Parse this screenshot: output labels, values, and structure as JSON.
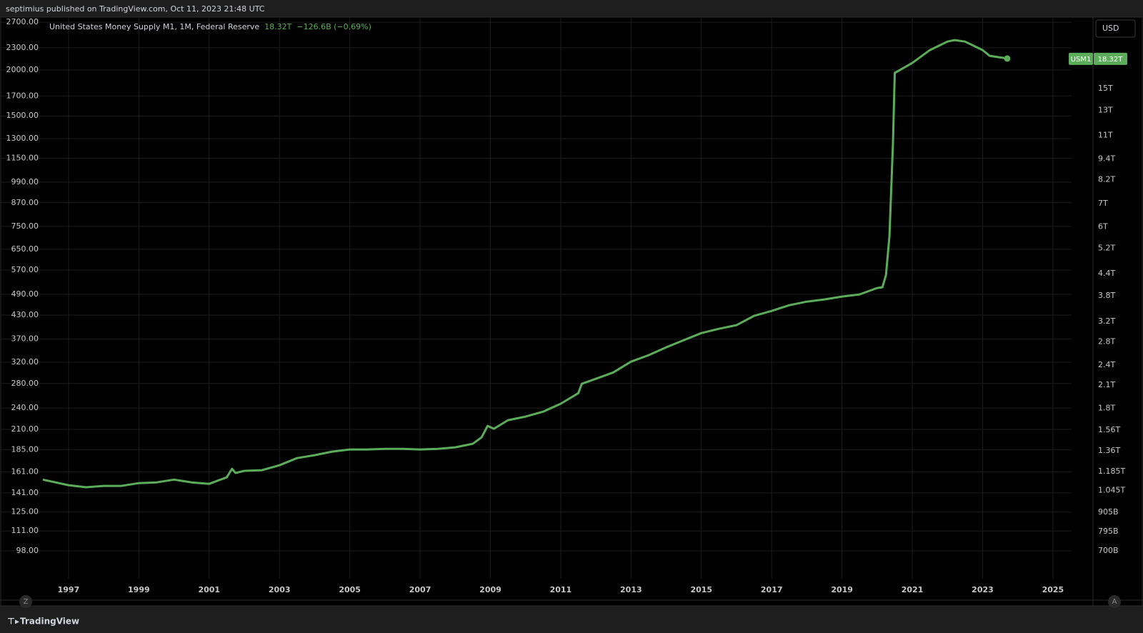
{
  "header": {
    "publisher": "septimius published on TradingView.com, Oct 11, 2023 21:48 UTC"
  },
  "footer": {
    "brand": "TradingView"
  },
  "controls": {
    "left_button": "Z",
    "right_button": "A"
  },
  "chart_data": {
    "type": "line",
    "title": "United States Money Supply M1, 1M, Federal Reserve",
    "last_value_label": "18.32T",
    "change_label": "−126.6B (−0.69%)",
    "currency": "USD",
    "log_scale": true,
    "grid": true,
    "x": [
      1996.27,
      1997,
      1997.5,
      1998,
      1998.5,
      1999,
      1999.5,
      2000,
      2000.5,
      2001,
      2001.5,
      2001.65,
      2001.75,
      2002,
      2002.5,
      2003,
      2003.5,
      2004,
      2004.5,
      2005,
      2005.5,
      2006,
      2006.5,
      2007,
      2007.5,
      2008,
      2008.5,
      2008.75,
      2008.92,
      2009.1,
      2009.5,
      2010,
      2010.5,
      2011,
      2011.5,
      2011.6,
      2012,
      2012.5,
      2013,
      2013.5,
      2014,
      2014.5,
      2015,
      2015.5,
      2016,
      2016.5,
      2017,
      2017.5,
      2018,
      2018.5,
      2019,
      2019.5,
      2020,
      2020.15,
      2020.25,
      2020.35,
      2020.45,
      2020.5,
      2021,
      2021.5,
      2022,
      2022.2,
      2022.5,
      2023,
      2023.2,
      2023.7
    ],
    "series": [
      {
        "name": "USM1",
        "color": "#5cad5a",
        "axis": "y2",
        "values": [
          1.123,
          1.082,
          1.067,
          1.077,
          1.077,
          1.097,
          1.102,
          1.123,
          1.102,
          1.092,
          1.14,
          1.206,
          1.173,
          1.19,
          1.195,
          1.235,
          1.295,
          1.32,
          1.352,
          1.371,
          1.371,
          1.377,
          1.377,
          1.371,
          1.377,
          1.391,
          1.424,
          1.486,
          1.603,
          1.573,
          1.665,
          1.705,
          1.762,
          1.857,
          1.992,
          2.119,
          2.191,
          2.286,
          2.455,
          2.562,
          2.699,
          2.83,
          2.967,
          3.052,
          3.126,
          3.326,
          3.436,
          3.568,
          3.654,
          3.708,
          3.779,
          3.833,
          4.0,
          4.02,
          4.356,
          5.652,
          10.46,
          16.65,
          17.79,
          19.37,
          20.5,
          20.7,
          20.5,
          19.37,
          18.65,
          18.32
        ]
      }
    ],
    "xlim": [
      1996.27,
      2025.53
    ],
    "xticks": [
      1997,
      1999,
      2001,
      2003,
      2005,
      2007,
      2009,
      2011,
      2013,
      2015,
      2017,
      2019,
      2021,
      2023,
      2025
    ],
    "ylim": [
      82.3,
      2787
    ],
    "yticks": [
      {
        "value": 2700,
        "label": "2700.00"
      },
      {
        "value": 2300,
        "label": "2300.00"
      },
      {
        "value": 2000,
        "label": "2000.00"
      },
      {
        "value": 1700,
        "label": "1700.00"
      },
      {
        "value": 1500,
        "label": "1500.00"
      },
      {
        "value": 1300,
        "label": "1300.00"
      },
      {
        "value": 1150,
        "label": "1150.00"
      },
      {
        "value": 990,
        "label": "990.00"
      },
      {
        "value": 870,
        "label": "870.00"
      },
      {
        "value": 750,
        "label": "750.00"
      },
      {
        "value": 650,
        "label": "650.00"
      },
      {
        "value": 570,
        "label": "570.00"
      },
      {
        "value": 490,
        "label": "490.00"
      },
      {
        "value": 430,
        "label": "430.00"
      },
      {
        "value": 370,
        "label": "370.00"
      },
      {
        "value": 320,
        "label": "320.00"
      },
      {
        "value": 280,
        "label": "280.00"
      },
      {
        "value": 240,
        "label": "240.00"
      },
      {
        "value": 210,
        "label": "210.00"
      },
      {
        "value": 185,
        "label": "185.00"
      },
      {
        "value": 161,
        "label": "161.00"
      },
      {
        "value": 141,
        "label": "141.00"
      },
      {
        "value": 125,
        "label": "125.00"
      },
      {
        "value": 111,
        "label": "111.00"
      },
      {
        "value": 98,
        "label": "98.00"
      }
    ],
    "y2lim": [
      0.582,
      24.1
    ],
    "y2ticks": [
      {
        "value": 15,
        "label": "15T"
      },
      {
        "value": 13,
        "label": "13T"
      },
      {
        "value": 11,
        "label": "11T"
      },
      {
        "value": 9.4,
        "label": "9.4T"
      },
      {
        "value": 8.2,
        "label": "8.2T"
      },
      {
        "value": 7,
        "label": "7T"
      },
      {
        "value": 6,
        "label": "6T"
      },
      {
        "value": 5.2,
        "label": "5.2T"
      },
      {
        "value": 4.4,
        "label": "4.4T"
      },
      {
        "value": 3.8,
        "label": "3.8T"
      },
      {
        "value": 3.2,
        "label": "3.2T"
      },
      {
        "value": 2.8,
        "label": "2.8T"
      },
      {
        "value": 2.4,
        "label": "2.4T"
      },
      {
        "value": 2.1,
        "label": "2.1T"
      },
      {
        "value": 1.8,
        "label": "1.8T"
      },
      {
        "value": 1.56,
        "label": "1.56T"
      },
      {
        "value": 1.36,
        "label": "1.36T"
      },
      {
        "value": 1.185,
        "label": "1.185T"
      },
      {
        "value": 1.045,
        "label": "1.045T"
      },
      {
        "value": 0.905,
        "label": "905B"
      },
      {
        "value": 0.795,
        "label": "795B"
      },
      {
        "value": 0.7,
        "label": "700B"
      }
    ]
  }
}
